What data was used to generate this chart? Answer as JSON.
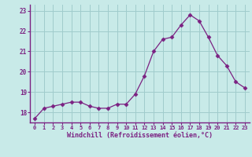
{
  "x": [
    0,
    1,
    2,
    3,
    4,
    5,
    6,
    7,
    8,
    9,
    10,
    11,
    12,
    13,
    14,
    15,
    16,
    17,
    18,
    19,
    20,
    21,
    22,
    23
  ],
  "y": [
    17.7,
    18.2,
    18.3,
    18.4,
    18.5,
    18.5,
    18.3,
    18.2,
    18.2,
    18.4,
    18.4,
    18.9,
    19.8,
    21.0,
    21.6,
    21.7,
    22.3,
    22.8,
    22.5,
    21.7,
    20.8,
    20.3,
    19.5,
    19.2
  ],
  "line_color": "#7B2182",
  "marker": "D",
  "marker_size": 2.5,
  "bg_color": "#C8EAE8",
  "grid_color": "#A0CCCC",
  "xlabel": "Windchill (Refroidissement éolien,°C)",
  "xlabel_color": "#7B2182",
  "tick_color": "#7B2182",
  "spine_color": "#7B2182",
  "ylim": [
    17.5,
    23.3
  ],
  "yticks": [
    18,
    19,
    20,
    21,
    22,
    23
  ],
  "xlim": [
    -0.5,
    23.5
  ],
  "xticks": [
    0,
    1,
    2,
    3,
    4,
    5,
    6,
    7,
    8,
    9,
    10,
    11,
    12,
    13,
    14,
    15,
    16,
    17,
    18,
    19,
    20,
    21,
    22,
    23
  ],
  "font_size_x": 5.0,
  "font_size_y": 5.5,
  "font_size_xlabel": 6.0
}
